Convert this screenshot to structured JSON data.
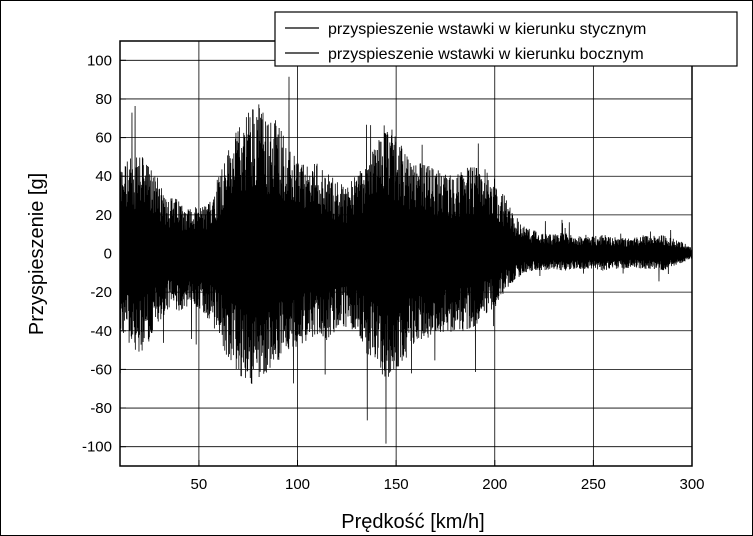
{
  "chart_data": {
    "type": "line",
    "title": "",
    "xlabel": "Prędkość [km/h]",
    "ylabel": "Przyspieszenie [g]",
    "xlim": [
      10,
      300
    ],
    "ylim": [
      -110,
      110
    ],
    "x_ticks": [
      50,
      100,
      150,
      200,
      250,
      300
    ],
    "x_tick_labels": [
      "50",
      "100",
      "150",
      "200",
      "250",
      "300"
    ],
    "y_ticks": [
      -100,
      -80,
      -60,
      -40,
      -20,
      0,
      20,
      40,
      60,
      80,
      100
    ],
    "y_tick_labels": [
      "-100",
      "-80",
      "-60",
      "-40",
      "-20",
      "0",
      "20",
      "40",
      "60",
      "80",
      "100"
    ],
    "grid": true,
    "legend_position": "top-right",
    "series": [
      {
        "name": "przyspieszenie wstawki w kierunku stycznym",
        "color": "#000000",
        "x": [
          10,
          15,
          20,
          25,
          30,
          35,
          40,
          45,
          50,
          55,
          60,
          65,
          70,
          75,
          80,
          85,
          90,
          95,
          100,
          105,
          110,
          115,
          120,
          125,
          130,
          135,
          140,
          145,
          150,
          155,
          160,
          165,
          170,
          175,
          180,
          185,
          190,
          195,
          200,
          205,
          210,
          215,
          220,
          225,
          230,
          235,
          240,
          245,
          250,
          255,
          260,
          265,
          270,
          275,
          280,
          285,
          290,
          295,
          300
        ],
        "upper_envelope": [
          45,
          50,
          52,
          45,
          38,
          30,
          28,
          24,
          24,
          26,
          42,
          55,
          65,
          75,
          80,
          68,
          72,
          55,
          50,
          45,
          48,
          42,
          38,
          35,
          42,
          50,
          58,
          70,
          60,
          52,
          48,
          46,
          44,
          42,
          40,
          46,
          45,
          44,
          40,
          30,
          20,
          14,
          12,
          11,
          10,
          11,
          9,
          10,
          9,
          10,
          9,
          8,
          8,
          10,
          9,
          10,
          8,
          6,
          3
        ],
        "lower_envelope": [
          -40,
          -50,
          -55,
          -45,
          -35,
          -30,
          -30,
          -28,
          -28,
          -35,
          -45,
          -55,
          -62,
          -72,
          -65,
          -62,
          -58,
          -50,
          -48,
          -45,
          -42,
          -45,
          -40,
          -38,
          -42,
          -52,
          -60,
          -65,
          -60,
          -55,
          -45,
          -45,
          -40,
          -42,
          -40,
          -40,
          -38,
          -32,
          -28,
          -20,
          -14,
          -10,
          -9,
          -9,
          -8,
          -9,
          -8,
          -8,
          -8,
          -9,
          -8,
          -8,
          -7,
          -8,
          -8,
          -9,
          -7,
          -5,
          -3
        ],
        "peak_max": 100,
        "peak_min": -102
      },
      {
        "name": "przyspieszenie wstawki w kierunku bocznym",
        "color": "#000000",
        "x": [],
        "y": []
      }
    ]
  }
}
